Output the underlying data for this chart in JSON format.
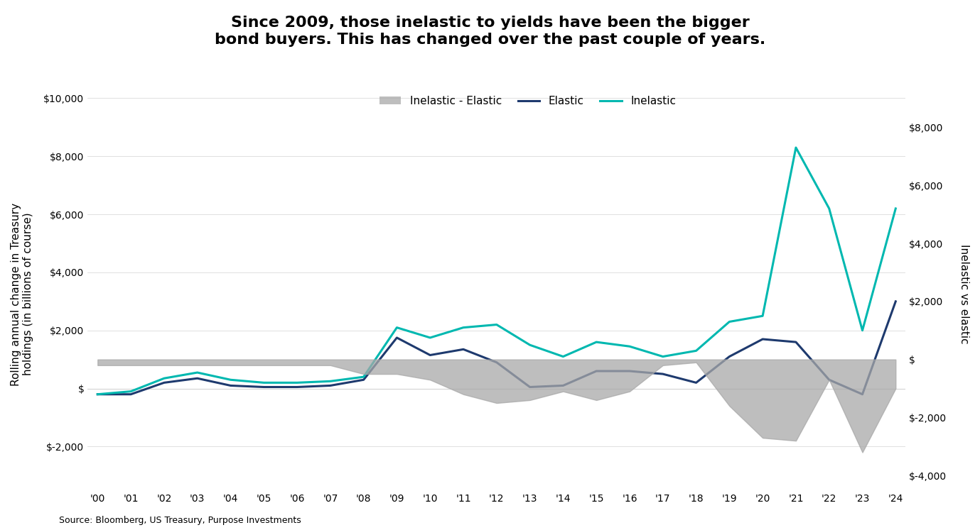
{
  "title": "Since 2009, those inelastic to yields have been the bigger\nbond buyers. This has changed over the past couple of years.",
  "source": "Source: Bloomberg, US Treasury, Purpose Investments",
  "ylabel_left": "Rolling annual change in Treasury\nholdings (in billions of course)",
  "ylabel_right": "Inelastic vs elastic",
  "xlabels": [
    "'00",
    "'01",
    "'02",
    "'03",
    "'04",
    "'05",
    "'06",
    "'07",
    "'08",
    "'09",
    "'10",
    "'11",
    "'12",
    "'13",
    "'14",
    "'15",
    "'16",
    "'17",
    "'18",
    "'19",
    "'20",
    "'21",
    "'22",
    "'23",
    "'24"
  ],
  "ylim_left": [
    -3500,
    10000
  ],
  "ylim_right": [
    -4500,
    9000
  ],
  "yticks_left": [
    -2000,
    0,
    2000,
    4000,
    6000,
    8000,
    10000
  ],
  "yticks_right": [
    -4000,
    -2000,
    0,
    2000,
    4000,
    6000,
    8000
  ],
  "background_color": "#ffffff",
  "elastic_color": "#1e3a6e",
  "inelastic_color": "#00b8b0",
  "diff_color": "#a8a8a8",
  "elastic": [
    -200,
    -200,
    200,
    350,
    100,
    50,
    50,
    100,
    300,
    1750,
    1150,
    1350,
    900,
    50,
    100,
    600,
    600,
    500,
    200,
    1100,
    1700,
    1600,
    300,
    -200,
    3000
  ],
  "inelastic": [
    -200,
    -100,
    350,
    550,
    300,
    200,
    200,
    250,
    400,
    2100,
    1750,
    2100,
    2200,
    1500,
    1100,
    1600,
    1450,
    1100,
    1300,
    2300,
    2500,
    8300,
    6200,
    2000,
    6200
  ],
  "diff": [
    -200,
    -200,
    -200,
    -200,
    -200,
    -200,
    -200,
    -200,
    -500,
    -500,
    -700,
    -1200,
    -1500,
    -1400,
    -1100,
    -1400,
    -1100,
    -200,
    -100,
    -1600,
    -2700,
    -2800,
    -700,
    -3200,
    -1000
  ]
}
